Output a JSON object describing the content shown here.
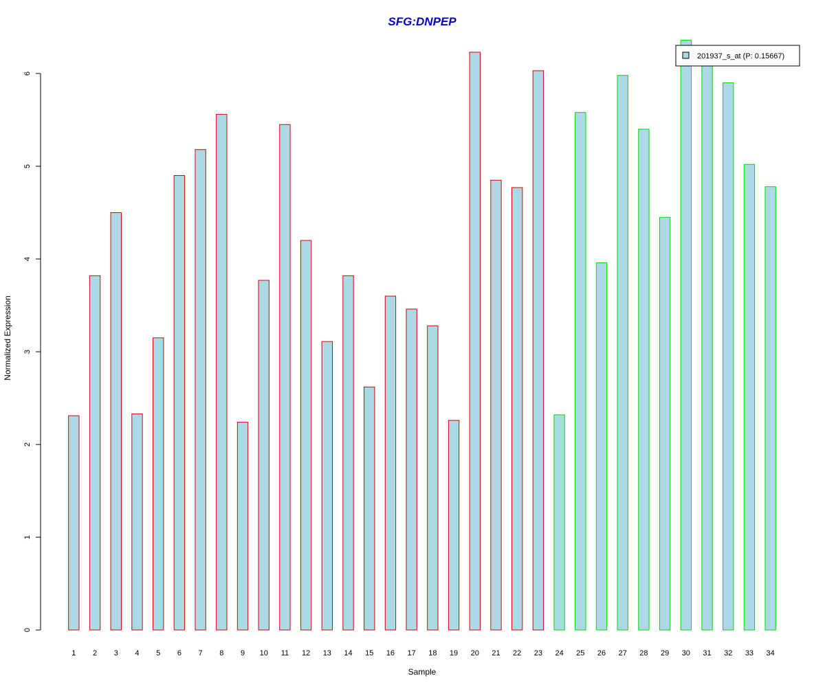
{
  "chart_data": {
    "type": "bar",
    "title": "SFG:DNPEP",
    "xlabel": "Sample",
    "ylabel": "Normalized Expression",
    "categories": [
      "1",
      "2",
      "3",
      "4",
      "5",
      "6",
      "7",
      "8",
      "9",
      "10",
      "11",
      "12",
      "13",
      "14",
      "15",
      "16",
      "17",
      "18",
      "19",
      "20",
      "21",
      "22",
      "23",
      "24",
      "25",
      "26",
      "27",
      "28",
      "29",
      "30",
      "31",
      "32",
      "33",
      "34"
    ],
    "values": [
      2.31,
      3.82,
      4.5,
      2.33,
      3.15,
      4.9,
      5.18,
      5.56,
      2.24,
      3.77,
      5.45,
      4.2,
      3.11,
      3.82,
      2.62,
      3.6,
      3.46,
      3.28,
      2.26,
      6.23,
      4.85,
      4.77,
      6.03,
      2.32,
      5.58,
      3.96,
      5.98,
      5.4,
      4.45,
      6.36,
      6.15,
      5.9,
      5.02,
      4.78
    ],
    "groups": [
      {
        "from": 0,
        "to": 22,
        "border_color": "#dd0000"
      },
      {
        "from": 23,
        "to": 33,
        "border_color": "#00dd00"
      }
    ],
    "bar_fill": "#add8e6",
    "title_color": "#0000cc",
    "y_ticks": [
      0,
      1,
      2,
      3,
      4,
      5,
      6
    ],
    "ylim": [
      0,
      6.5
    ],
    "legend": {
      "label": "201937_s_at (P: 0.15667)",
      "position": "top-right",
      "swatch_fill": "#add8e6"
    },
    "grid": false
  }
}
